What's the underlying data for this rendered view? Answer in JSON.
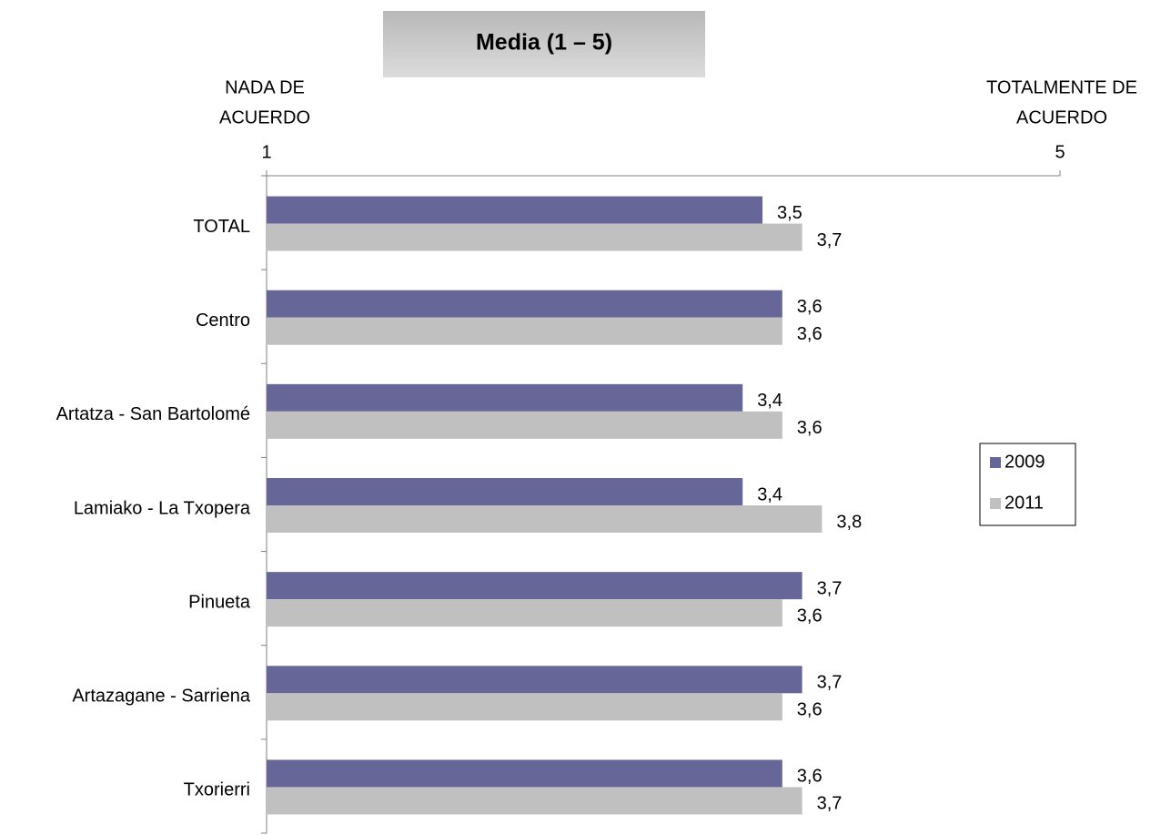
{
  "chart_data": {
    "type": "hbar",
    "title": "Media (1 – 5)",
    "x_axis_left_label": [
      "NADA DE",
      "ACUERDO"
    ],
    "x_axis_right_label": [
      "TOTALMENTE DE",
      "ACUERDO"
    ],
    "categories": [
      "TOTAL",
      "Centro",
      "Artatza - San Bartolomé",
      "Lamiako - La Txopera",
      "Pinueta",
      "Artazagane - Sarriena",
      "Txorierri"
    ],
    "series": [
      {
        "name": "2009",
        "color": "#666699",
        "values": [
          3.5,
          3.6,
          3.4,
          3.4,
          3.7,
          3.7,
          3.6
        ],
        "value_labels": [
          "3,5",
          "3,6",
          "3,4",
          "3,4",
          "3,7",
          "3,7",
          "3,6"
        ]
      },
      {
        "name": "2011",
        "color": "#c0c0c0",
        "values": [
          3.7,
          3.6,
          3.6,
          3.8,
          3.6,
          3.6,
          3.7
        ],
        "value_labels": [
          "3,7",
          "3,6",
          "3,6",
          "3,8",
          "3,6",
          "3,6",
          "3,7"
        ]
      }
    ],
    "xlim": [
      1,
      5
    ],
    "xticks": [
      1,
      5
    ],
    "legend": "right"
  }
}
